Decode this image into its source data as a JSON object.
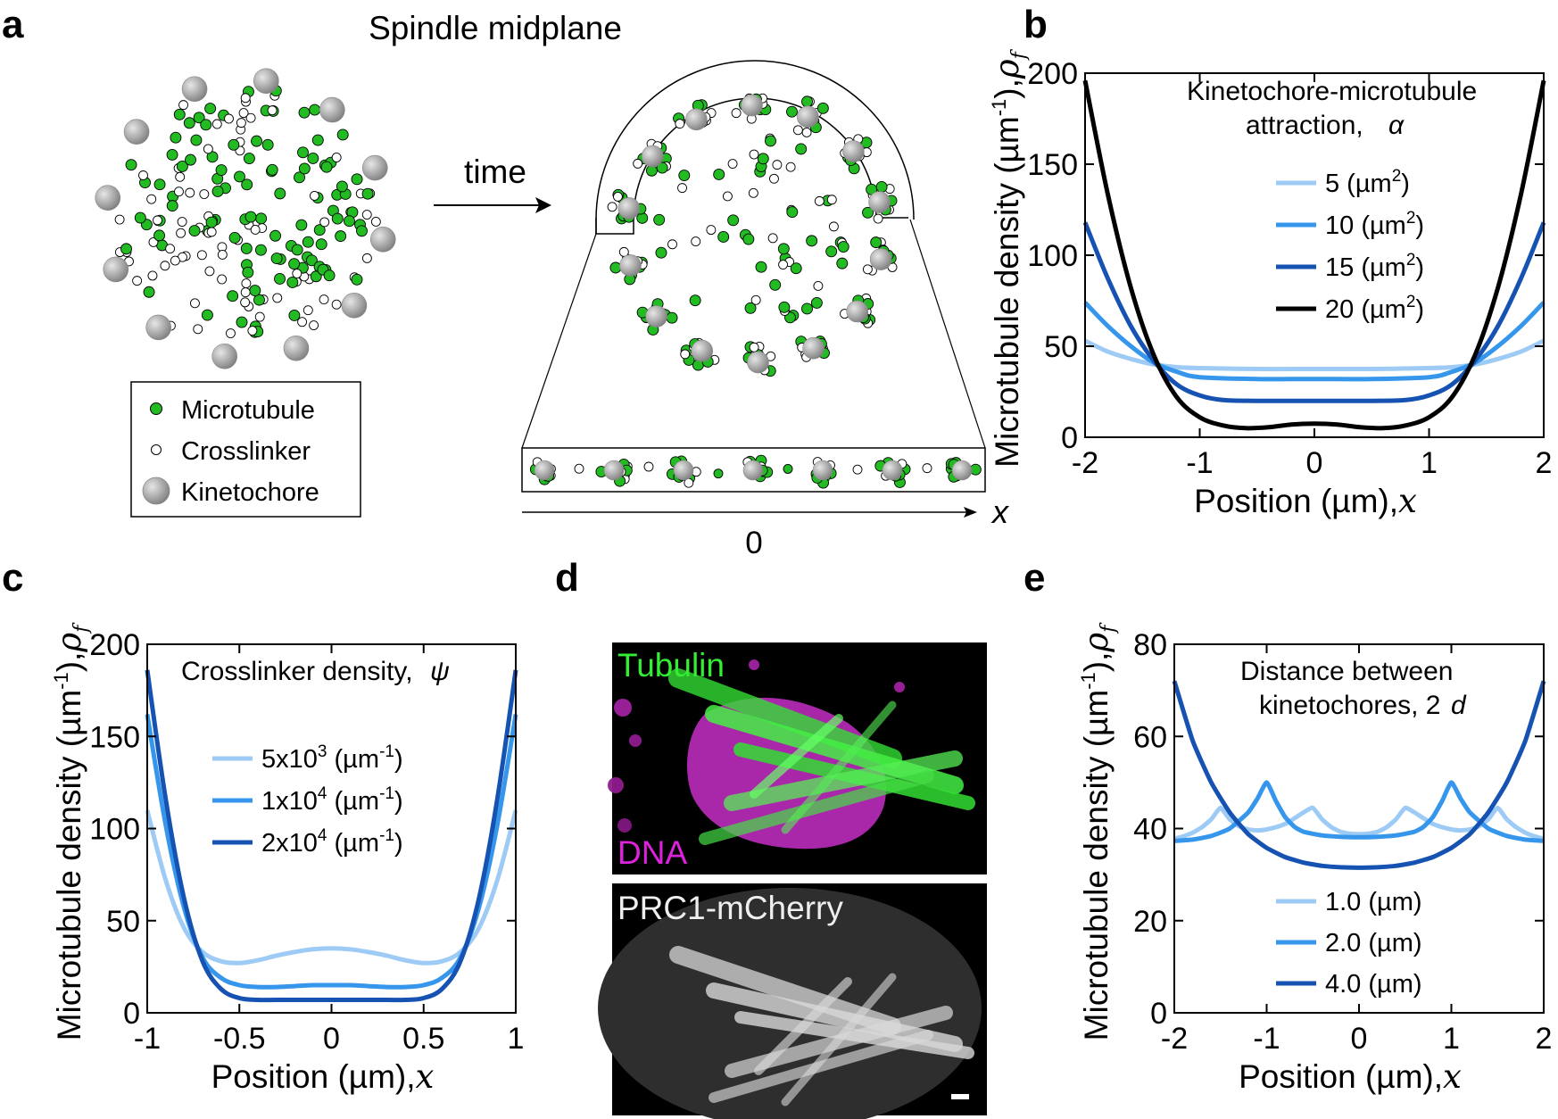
{
  "panel_a": {
    "letter": "a",
    "title": "Spindle midplane",
    "arrow_label": "time",
    "legend": [
      {
        "label": "Microtubule",
        "color": "#22bb22"
      },
      {
        "label": "Crosslinker",
        "color": "#ffffff"
      },
      {
        "label": "Kinetochore",
        "color": "#a8a8a8"
      }
    ],
    "axis_var": "x",
    "axis_zero": "0"
  },
  "panel_d": {
    "letter": "d",
    "top_label_1": "Tubulin",
    "top_label_2": "DNA",
    "bottom_label": "PRC1-mCherry",
    "colors": {
      "tubulin": "#33ee33",
      "dna": "#dd22dd"
    }
  },
  "y_label": "Microtubule density (µm",
  "y_label_exp": "-1",
  "y_label_close": "),",
  "y_var": "ρ",
  "y_var_sub": "f",
  "x_label": "Position (µm),",
  "x_var": "x",
  "chart_data": [
    {
      "id": "b",
      "type": "line",
      "letter": "b",
      "legend_title_1": "Kinetochore-microtubule",
      "legend_title_2": "attraction,",
      "legend_var": "α",
      "xlim": [
        -2,
        2
      ],
      "ylim": [
        0,
        200
      ],
      "xticks": [
        "-2",
        "-1",
        "0",
        "1",
        "2"
      ],
      "yticks": [
        "0",
        "50",
        "100",
        "150",
        "200"
      ],
      "series": [
        {
          "name": "5 (µm",
          "sup": "2",
          "close": ")",
          "color": "#9ecbf5",
          "points": [
            [
              -2,
              53
            ],
            [
              -1.8,
              47
            ],
            [
              -1.6,
              43
            ],
            [
              -1.4,
              40
            ],
            [
              -1.2,
              38.5
            ],
            [
              -1,
              38
            ],
            [
              -0.5,
              37.5
            ],
            [
              0,
              37.5
            ],
            [
              0.5,
              37.5
            ],
            [
              1,
              38
            ],
            [
              1.2,
              38.5
            ],
            [
              1.4,
              40
            ],
            [
              1.6,
              43
            ],
            [
              1.8,
              47
            ],
            [
              2,
              53
            ]
          ]
        },
        {
          "name": "10 (µm",
          "sup": "2",
          "close": ")",
          "color": "#3596ec",
          "points": [
            [
              -2,
              74
            ],
            [
              -1.8,
              61
            ],
            [
              -1.6,
              50
            ],
            [
              -1.4,
              41
            ],
            [
              -1.2,
              36
            ],
            [
              -1,
              33
            ],
            [
              -0.5,
              32
            ],
            [
              0,
              32
            ],
            [
              0.5,
              32
            ],
            [
              1,
              33
            ],
            [
              1.2,
              36
            ],
            [
              1.4,
              41
            ],
            [
              1.6,
              50
            ],
            [
              1.8,
              61
            ],
            [
              2,
              74
            ]
          ]
        },
        {
          "name": "15 (µm",
          "sup": "2",
          "close": ")",
          "color": "#1552b2",
          "points": [
            [
              -2,
              118
            ],
            [
              -1.8,
              87
            ],
            [
              -1.6,
              61
            ],
            [
              -1.4,
              42
            ],
            [
              -1.2,
              29
            ],
            [
              -1,
              23
            ],
            [
              -0.8,
              20.5
            ],
            [
              -0.5,
              20
            ],
            [
              0,
              20
            ],
            [
              0.5,
              20
            ],
            [
              0.8,
              20.5
            ],
            [
              1,
              23
            ],
            [
              1.2,
              29
            ],
            [
              1.4,
              42
            ],
            [
              1.6,
              61
            ],
            [
              1.8,
              87
            ],
            [
              2,
              118
            ]
          ]
        },
        {
          "name": "20 (µm",
          "sup": "2",
          "close": ")",
          "color": "#000000",
          "points": [
            [
              -2,
              196
            ],
            [
              -1.8,
              133
            ],
            [
              -1.6,
              82
            ],
            [
              -1.4,
              45
            ],
            [
              -1.2,
              22
            ],
            [
              -1,
              11
            ],
            [
              -0.8,
              6.5
            ],
            [
              -0.6,
              5
            ],
            [
              -0.4,
              5.5
            ],
            [
              -0.2,
              7
            ],
            [
              0,
              7.5
            ],
            [
              0.2,
              7
            ],
            [
              0.4,
              5.5
            ],
            [
              0.6,
              5
            ],
            [
              0.8,
              6.5
            ],
            [
              1,
              11
            ],
            [
              1.2,
              22
            ],
            [
              1.4,
              45
            ],
            [
              1.6,
              82
            ],
            [
              1.8,
              133
            ],
            [
              2,
              196
            ]
          ]
        }
      ]
    },
    {
      "id": "c",
      "type": "line",
      "letter": "c",
      "legend_title_1": "Crosslinker density,",
      "legend_var": "ψ",
      "xlim": [
        -1,
        1
      ],
      "ylim": [
        0,
        200
      ],
      "xticks": [
        "-1",
        "-0.5",
        "0",
        "0.5",
        "1"
      ],
      "yticks": [
        "0",
        "50",
        "100",
        "150",
        "200"
      ],
      "series": [
        {
          "name": "5x10",
          "sup": "3",
          "close": " (µm",
          "sup2": "-1",
          "close2": ")",
          "color": "#9ecbf5",
          "points": [
            [
              -1,
              110
            ],
            [
              -0.9,
              72
            ],
            [
              -0.8,
              46
            ],
            [
              -0.7,
              33
            ],
            [
              -0.6,
              28
            ],
            [
              -0.5,
              27
            ],
            [
              -0.4,
              28.5
            ],
            [
              -0.3,
              31
            ],
            [
              -0.2,
              33
            ],
            [
              -0.1,
              34.5
            ],
            [
              0,
              35
            ],
            [
              0.1,
              34.5
            ],
            [
              0.2,
              33
            ],
            [
              0.3,
              31
            ],
            [
              0.4,
              28.5
            ],
            [
              0.5,
              27
            ],
            [
              0.6,
              28
            ],
            [
              0.7,
              33
            ],
            [
              0.8,
              46
            ],
            [
              0.9,
              72
            ],
            [
              1,
              110
            ]
          ]
        },
        {
          "name": "1x10",
          "sup": "4",
          "close": " (µm",
          "sup2": "-1",
          "close2": ")",
          "color": "#3596ec",
          "points": [
            [
              -1,
              162
            ],
            [
              -0.9,
              102
            ],
            [
              -0.8,
              57
            ],
            [
              -0.7,
              30
            ],
            [
              -0.6,
              19
            ],
            [
              -0.5,
              15
            ],
            [
              -0.4,
              14
            ],
            [
              -0.3,
              14
            ],
            [
              -0.2,
              14.5
            ],
            [
              -0.1,
              15
            ],
            [
              0,
              15
            ],
            [
              0.1,
              15
            ],
            [
              0.2,
              14.5
            ],
            [
              0.3,
              14
            ],
            [
              0.4,
              14
            ],
            [
              0.5,
              15
            ],
            [
              0.6,
              19
            ],
            [
              0.7,
              30
            ],
            [
              0.8,
              57
            ],
            [
              0.9,
              102
            ],
            [
              1,
              162
            ]
          ]
        },
        {
          "name": "2x10",
          "sup": "4",
          "close": " (µm",
          "sup2": "-1",
          "close2": ")",
          "color": "#1552b2",
          "points": [
            [
              -1,
              186
            ],
            [
              -0.9,
              116
            ],
            [
              -0.8,
              62
            ],
            [
              -0.7,
              28
            ],
            [
              -0.6,
              13
            ],
            [
              -0.5,
              8
            ],
            [
              -0.4,
              7
            ],
            [
              -0.3,
              7
            ],
            [
              -0.2,
              7
            ],
            [
              -0.1,
              7
            ],
            [
              0,
              7
            ],
            [
              0.1,
              7
            ],
            [
              0.2,
              7
            ],
            [
              0.3,
              7
            ],
            [
              0.4,
              7
            ],
            [
              0.5,
              8
            ],
            [
              0.6,
              13
            ],
            [
              0.7,
              28
            ],
            [
              0.8,
              62
            ],
            [
              0.9,
              116
            ],
            [
              1,
              186
            ]
          ]
        }
      ]
    },
    {
      "id": "e",
      "type": "line",
      "letter": "e",
      "legend_title_1": "Distance between",
      "legend_title_2": "kinetochores, 2",
      "legend_var": "d",
      "xlim": [
        -2,
        2
      ],
      "ylim": [
        0,
        80
      ],
      "xticks": [
        "-2",
        "-1",
        "0",
        "1",
        "2"
      ],
      "yticks": [
        "0",
        "20",
        "40",
        "60",
        "80"
      ],
      "series": [
        {
          "name": "1.0 (µm)",
          "color": "#9ecbf5",
          "points": [
            [
              -2,
              37.8
            ],
            [
              -1.9,
              38.3
            ],
            [
              -1.8,
              39.1
            ],
            [
              -1.7,
              40.3
            ],
            [
              -1.6,
              42
            ],
            [
              -1.5,
              44.5
            ],
            [
              -1.4,
              42
            ],
            [
              -1.3,
              40.5
            ],
            [
              -1.2,
              39.8
            ],
            [
              -1.1,
              39.6
            ],
            [
              -1,
              39.8
            ],
            [
              -0.9,
              40.3
            ],
            [
              -0.8,
              41
            ],
            [
              -0.7,
              42.2
            ],
            [
              -0.6,
              43.5
            ],
            [
              -0.5,
              44.5
            ],
            [
              -0.4,
              42
            ],
            [
              -0.3,
              40.3
            ],
            [
              -0.2,
              39.3
            ],
            [
              -0.1,
              38.9
            ],
            [
              0,
              38.8
            ],
            [
              0.1,
              38.9
            ],
            [
              0.2,
              39.3
            ],
            [
              0.3,
              40.3
            ],
            [
              0.4,
              42
            ],
            [
              0.5,
              44.5
            ],
            [
              0.6,
              43.5
            ],
            [
              0.7,
              42.2
            ],
            [
              0.8,
              41
            ],
            [
              0.9,
              40.3
            ],
            [
              1,
              39.8
            ],
            [
              1.1,
              39.6
            ],
            [
              1.2,
              39.8
            ],
            [
              1.3,
              40.5
            ],
            [
              1.4,
              42
            ],
            [
              1.5,
              44.5
            ],
            [
              1.6,
              42
            ],
            [
              1.7,
              40.3
            ],
            [
              1.8,
              39.1
            ],
            [
              1.9,
              38.3
            ],
            [
              2,
              37.8
            ]
          ]
        },
        {
          "name": "2.0 (µm)",
          "color": "#3596ec",
          "points": [
            [
              -2,
              37.3
            ],
            [
              -1.8,
              37.6
            ],
            [
              -1.6,
              38.4
            ],
            [
              -1.4,
              40
            ],
            [
              -1.2,
              43.5
            ],
            [
              -1.1,
              46.5
            ],
            [
              -1,
              50
            ],
            [
              -0.9,
              46
            ],
            [
              -0.8,
              42.5
            ],
            [
              -0.7,
              40.4
            ],
            [
              -0.6,
              39.3
            ],
            [
              -0.4,
              38.5
            ],
            [
              -0.2,
              38.2
            ],
            [
              0,
              38.1
            ],
            [
              0.2,
              38.2
            ],
            [
              0.4,
              38.5
            ],
            [
              0.6,
              39.3
            ],
            [
              0.7,
              40.4
            ],
            [
              0.8,
              42.5
            ],
            [
              0.9,
              46
            ],
            [
              1,
              50
            ],
            [
              1.1,
              46.5
            ],
            [
              1.2,
              43.5
            ],
            [
              1.4,
              40
            ],
            [
              1.6,
              38.4
            ],
            [
              1.8,
              37.6
            ],
            [
              2,
              37.3
            ]
          ]
        },
        {
          "name": "4.0 (µm)",
          "color": "#1552b2",
          "points": [
            [
              -2,
              72
            ],
            [
              -1.8,
              59
            ],
            [
              -1.6,
              50
            ],
            [
              -1.4,
              43.5
            ],
            [
              -1.2,
              38.8
            ],
            [
              -1,
              35.8
            ],
            [
              -0.8,
              33.8
            ],
            [
              -0.6,
              32.6
            ],
            [
              -0.4,
              31.9
            ],
            [
              -0.2,
              31.6
            ],
            [
              0,
              31.5
            ],
            [
              0.2,
              31.6
            ],
            [
              0.4,
              31.9
            ],
            [
              0.6,
              32.6
            ],
            [
              0.8,
              33.8
            ],
            [
              1,
              35.8
            ],
            [
              1.2,
              38.8
            ],
            [
              1.4,
              43.5
            ],
            [
              1.6,
              50
            ],
            [
              1.8,
              59
            ],
            [
              2,
              72
            ]
          ]
        }
      ]
    }
  ]
}
